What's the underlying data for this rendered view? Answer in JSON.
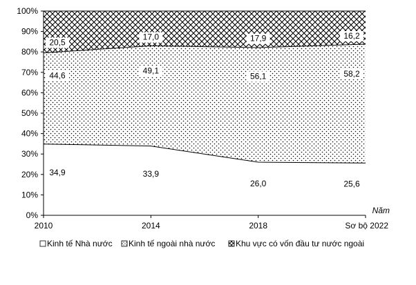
{
  "chart_data": {
    "type": "area",
    "stacked": true,
    "percent": true,
    "title": "",
    "xlabel": "Năm",
    "ylabel": "",
    "categories": [
      "2010",
      "2014",
      "2018",
      "Sơ bộ 2022"
    ],
    "ylim": [
      0,
      100
    ],
    "yticks": [
      "0%",
      "10%",
      "20%",
      "30%",
      "40%",
      "50%",
      "60%",
      "70%",
      "80%",
      "90%",
      "100%"
    ],
    "grid": false,
    "legend_position": "bottom",
    "series": [
      {
        "name": "Kinh tế Nhà nước",
        "values": [
          34.9,
          33.9,
          26.0,
          25.6
        ],
        "labels": [
          "34,9",
          "33,9",
          "26,0",
          "25,6"
        ],
        "pattern": "blank"
      },
      {
        "name": "Kinh tế ngoài nhà nước",
        "values": [
          44.6,
          49.1,
          56.1,
          58.2
        ],
        "labels": [
          "44,6",
          "49,1",
          "56,1",
          "58,2"
        ],
        "pattern": "dots"
      },
      {
        "name": "Khu vực có vốn đầu tư nước ngoài",
        "values": [
          20.5,
          17.0,
          17.9,
          16.2
        ],
        "labels": [
          "20,5",
          "17,0",
          "17,9",
          "16,2"
        ],
        "pattern": "crosshatch"
      }
    ]
  }
}
